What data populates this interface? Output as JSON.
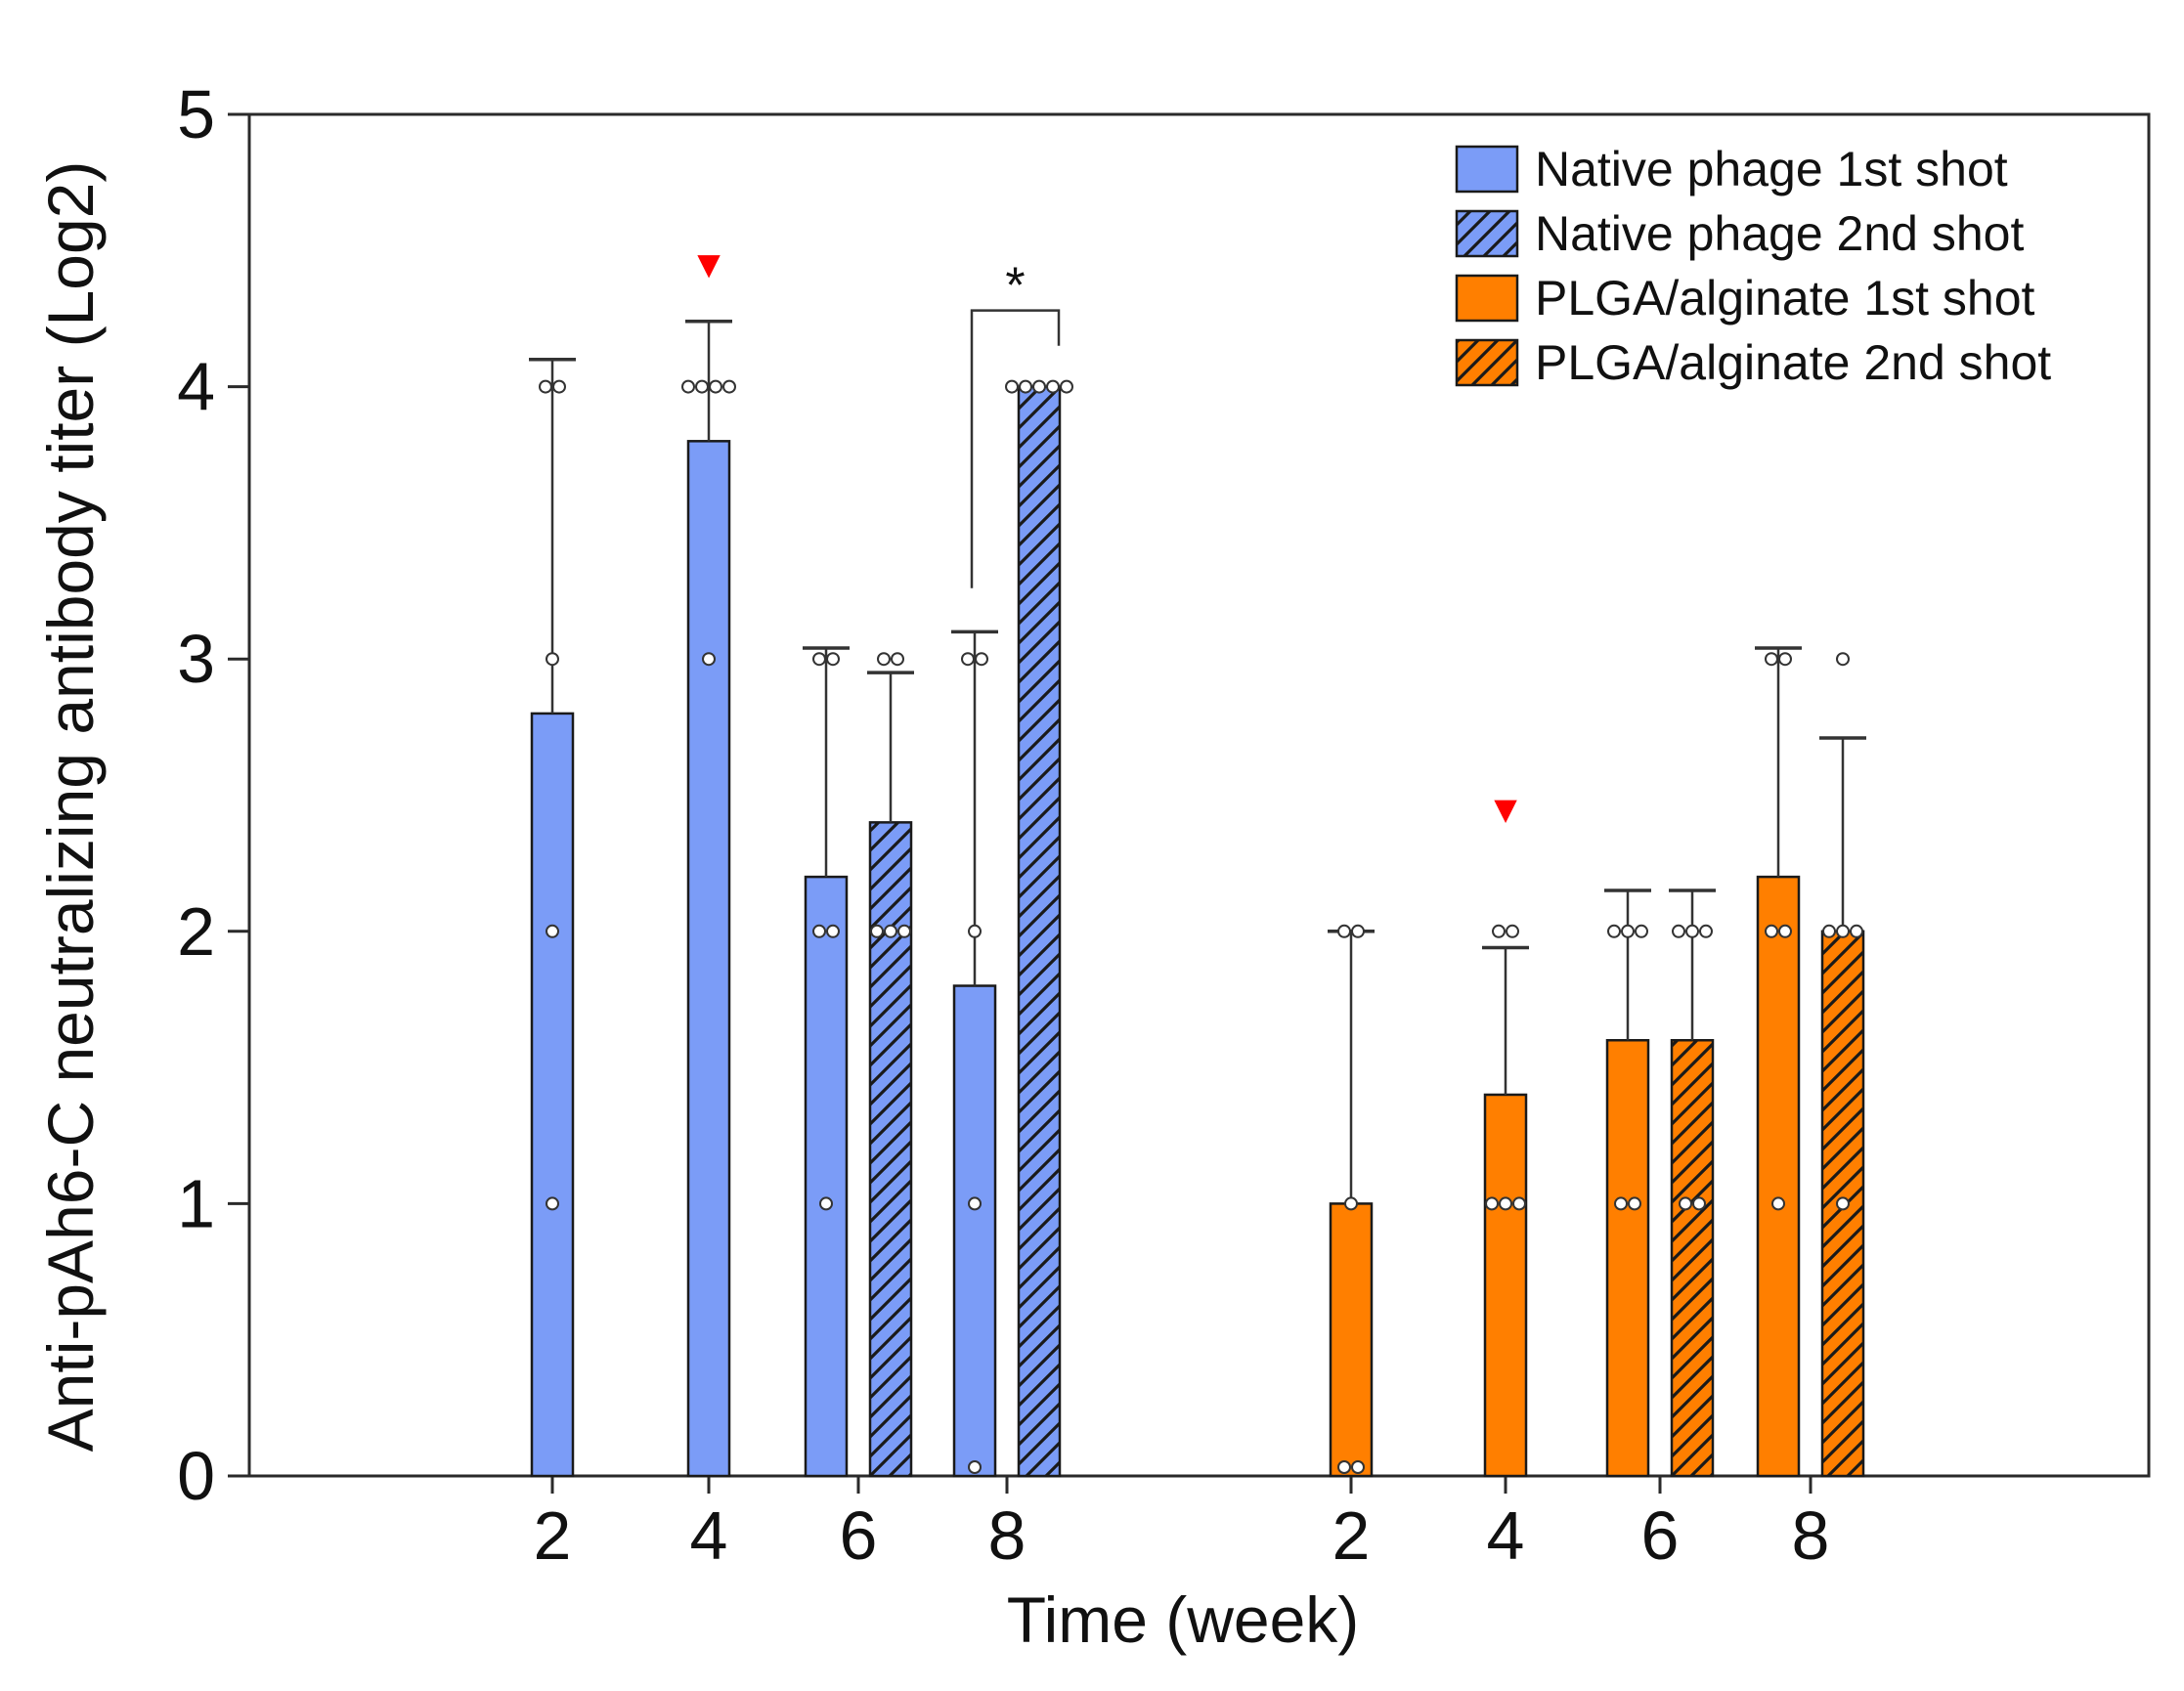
{
  "chart_data": {
    "type": "bar",
    "xlabel": "Time (week)",
    "ylabel": "Anti-pAh6-C neutralizing antibody titer (Log2)",
    "ylim": [
      0,
      5
    ],
    "yticks": [
      "0",
      "1",
      "2",
      "3",
      "4",
      "5"
    ],
    "grid": false,
    "legend_position": "top-right",
    "groups": [
      {
        "categories": [
          "2",
          "4",
          "6",
          "8"
        ],
        "series": [
          {
            "name": "Native phage 1st shot",
            "color": "#7b9cf7",
            "pattern": "solid",
            "values": [
              2.8,
              3.8,
              2.2,
              1.8
            ],
            "errors": [
              1.3,
              0.44,
              0.84,
              1.3
            ],
            "points": [
              [
                4,
                4,
                3,
                2,
                1
              ],
              [
                4,
                4,
                4,
                4,
                3
              ],
              [
                3,
                3,
                2,
                2,
                1
              ],
              [
                3,
                3,
                2,
                1,
                0
              ]
            ]
          },
          {
            "name": "Native phage 2nd shot",
            "color": "#7b9cf7",
            "pattern": "hatched",
            "values": [
              null,
              null,
              2.4,
              4.0
            ],
            "errors": [
              null,
              null,
              0.55,
              0
            ],
            "points": [
              [],
              [],
              [
                3,
                3,
                2,
                2,
                2
              ],
              [
                4,
                4,
                4,
                4,
                4
              ]
            ]
          }
        ],
        "markers": [
          {
            "category": "4",
            "symbol": "▼",
            "color": "#ff0000",
            "value": 4.45
          }
        ],
        "significance": [
          {
            "label": "*",
            "category": "8"
          }
        ]
      },
      {
        "categories": [
          "2",
          "4",
          "6",
          "8"
        ],
        "series": [
          {
            "name": "PLGA/alginate 1st shot",
            "color": "#ff7f00",
            "pattern": "solid",
            "values": [
              1.0,
              1.4,
              1.6,
              2.2
            ],
            "errors": [
              1.0,
              0.54,
              0.55,
              0.84
            ],
            "points": [
              [
                2,
                2,
                1,
                0,
                0
              ],
              [
                2,
                2,
                1,
                1,
                1
              ],
              [
                2,
                2,
                2,
                1,
                1
              ],
              [
                3,
                3,
                2,
                2,
                1
              ]
            ]
          },
          {
            "name": "PLGA/alginate 2nd shot",
            "color": "#ff7f00",
            "pattern": "hatched",
            "values": [
              null,
              null,
              1.6,
              2.0
            ],
            "errors": [
              null,
              null,
              0.55,
              0.71
            ],
            "points": [
              [],
              [],
              [
                2,
                2,
                2,
                1,
                1
              ],
              [
                3,
                2,
                2,
                2,
                1
              ]
            ]
          }
        ],
        "markers": [
          {
            "category": "4",
            "symbol": "▼",
            "color": "#ff0000",
            "value": 2.45
          }
        ]
      }
    ],
    "legend": [
      {
        "label": "Native phage 1st shot",
        "color": "#7b9cf7",
        "pattern": "solid"
      },
      {
        "label": "Native phage 2nd shot",
        "color": "#7b9cf7",
        "pattern": "hatched"
      },
      {
        "label": "PLGA/alginate 1st shot",
        "color": "#ff7f00",
        "pattern": "solid"
      },
      {
        "label": "PLGA/alginate 2nd shot",
        "color": "#ff7f00",
        "pattern": "hatched"
      }
    ]
  }
}
